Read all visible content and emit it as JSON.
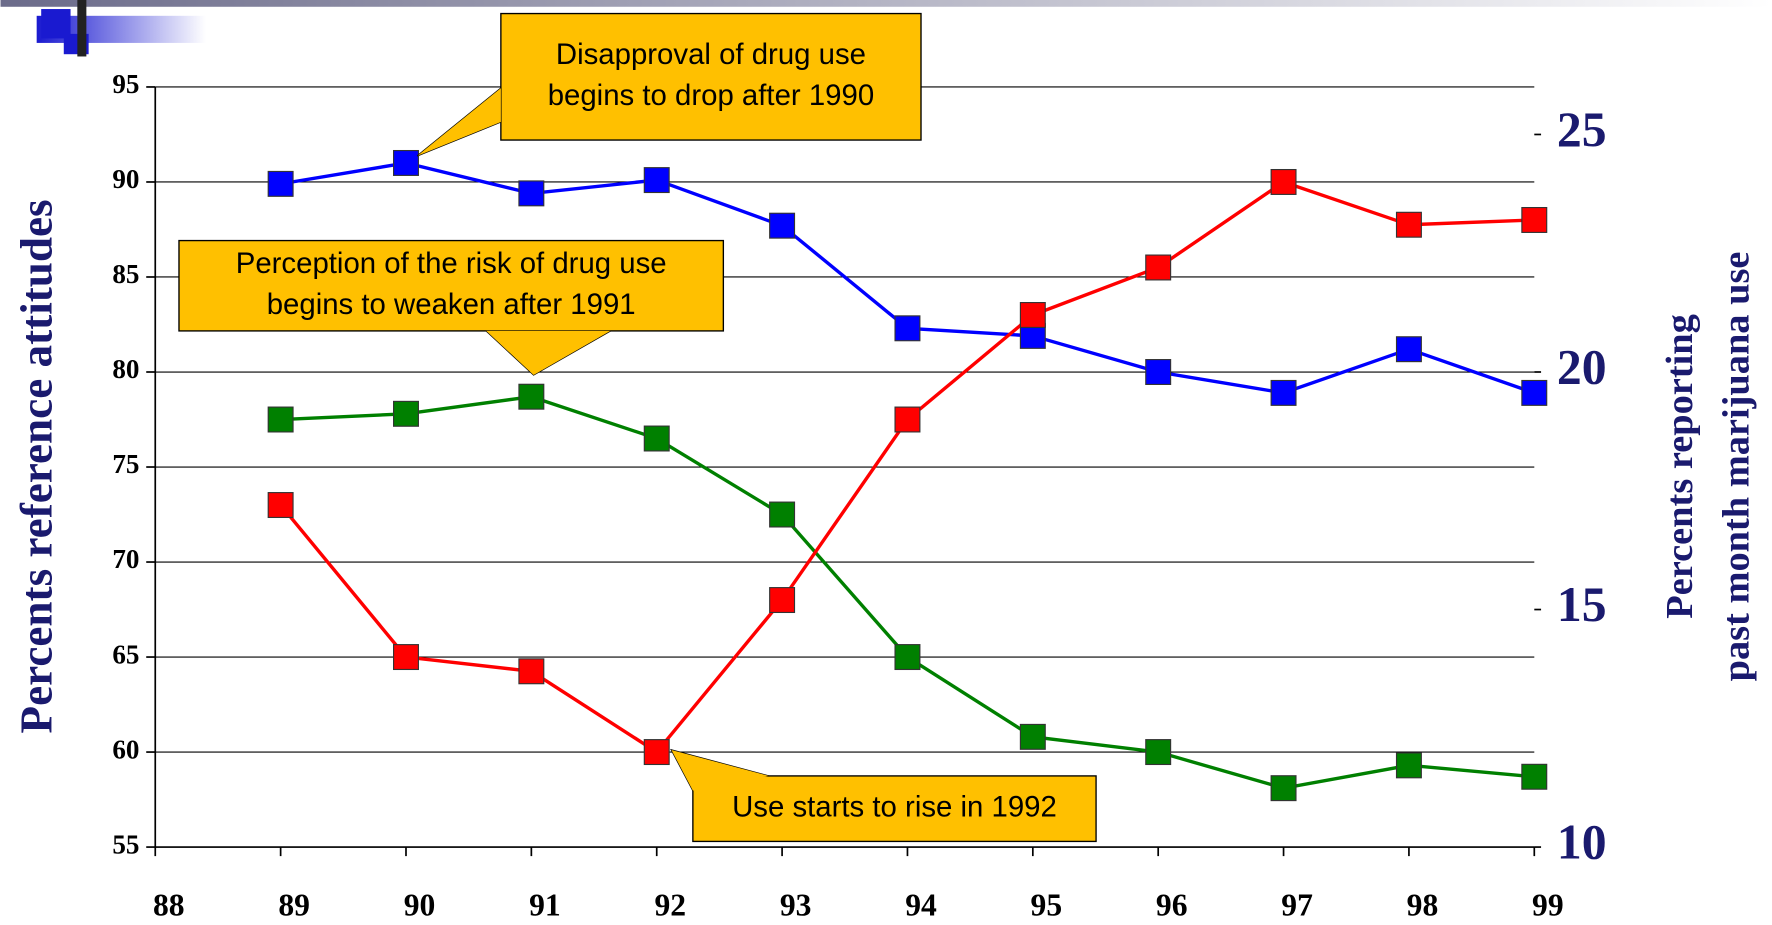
{
  "chart_data": {
    "type": "line",
    "ylabel": "Percents reference attitudes",
    "y2label": [
      "Percents reporting",
      "past month marijuana use"
    ],
    "x": [
      89,
      90,
      91,
      92,
      93,
      94,
      95,
      96,
      97,
      98,
      99
    ],
    "xlim": [
      88,
      99
    ],
    "xticks": [
      88,
      89,
      90,
      91,
      92,
      93,
      94,
      95,
      96,
      97,
      98,
      99
    ],
    "ylim": [
      55,
      95
    ],
    "yticks": [
      55,
      60,
      65,
      70,
      75,
      80,
      85,
      90,
      95
    ],
    "y2lim": [
      10,
      26
    ],
    "y2ticks": [
      10,
      15,
      20,
      25
    ],
    "grid": true,
    "series": [
      {
        "color": "#0000ff",
        "values": [
          89.9,
          91.0,
          89.4,
          90.1,
          87.7,
          82.3,
          81.9,
          80.0,
          78.9,
          81.2,
          78.9
        ]
      },
      {
        "color": "#008000",
        "values": [
          77.5,
          77.8,
          78.7,
          76.5,
          72.5,
          65.0,
          60.8,
          60.0,
          58.1,
          59.3,
          58.7
        ]
      },
      {
        "color": "#ff0000",
        "axis": "y2",
        "values": [
          17.2,
          14.0,
          13.7,
          12.0,
          15.2,
          19.0,
          21.2,
          22.2,
          24.0,
          23.1,
          23.2
        ]
      }
    ],
    "annotations": [
      [
        "Disapproval of drug use",
        "begins to drop after 1990"
      ],
      [
        "Perception of the risk of drug use",
        "begins to weaken after 1991"
      ],
      [
        "Use starts to rise in 1992"
      ]
    ]
  }
}
